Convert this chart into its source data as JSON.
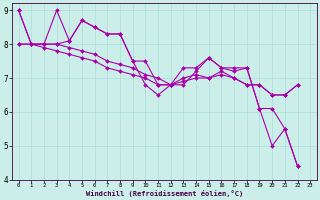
{
  "xlabel": "Windchill (Refroidissement éolien,°C)",
  "background_color": "#cceee8",
  "grid_color": "#aadddd",
  "line_color": "#aa00aa",
  "spine_color": "#440044",
  "xlim": [
    -0.5,
    23.5
  ],
  "ylim": [
    4,
    9.2
  ],
  "xticks": [
    0,
    1,
    2,
    3,
    4,
    5,
    6,
    7,
    8,
    9,
    10,
    11,
    12,
    13,
    14,
    15,
    16,
    17,
    18,
    19,
    20,
    21,
    22,
    23
  ],
  "yticks": [
    4,
    5,
    6,
    7,
    8,
    9
  ],
  "series": [
    [
      9.0,
      8.0,
      8.0,
      8.0,
      8.1,
      8.7,
      8.5,
      8.3,
      8.3,
      7.5,
      7.5,
      6.8,
      6.8,
      7.3,
      7.3,
      7.6,
      7.3,
      7.3,
      7.3,
      6.1,
      6.1,
      5.5,
      4.4
    ],
    [
      9.0,
      8.0,
      8.0,
      9.0,
      8.1,
      8.7,
      8.5,
      8.3,
      8.3,
      7.5,
      6.8,
      6.5,
      6.8,
      6.8,
      7.2,
      7.6,
      7.3,
      7.2,
      7.3,
      6.1,
      5.0,
      5.5,
      4.4
    ],
    [
      8.0,
      8.0,
      8.0,
      8.0,
      7.9,
      7.8,
      7.7,
      7.5,
      7.4,
      7.3,
      7.1,
      7.0,
      6.8,
      7.0,
      7.1,
      7.0,
      7.2,
      7.0,
      6.8,
      6.8,
      6.5,
      6.5,
      6.8
    ],
    [
      8.0,
      8.0,
      7.9,
      7.8,
      7.7,
      7.6,
      7.5,
      7.3,
      7.2,
      7.1,
      7.0,
      6.8,
      6.8,
      6.9,
      7.0,
      7.0,
      7.1,
      7.0,
      6.8,
      6.8,
      6.5,
      6.5,
      6.8
    ]
  ],
  "markersize": 2.0,
  "linewidth": 0.8,
  "xlabel_fontsize": 5.0,
  "tick_fontsize_x": 4.0,
  "tick_fontsize_y": 5.5
}
